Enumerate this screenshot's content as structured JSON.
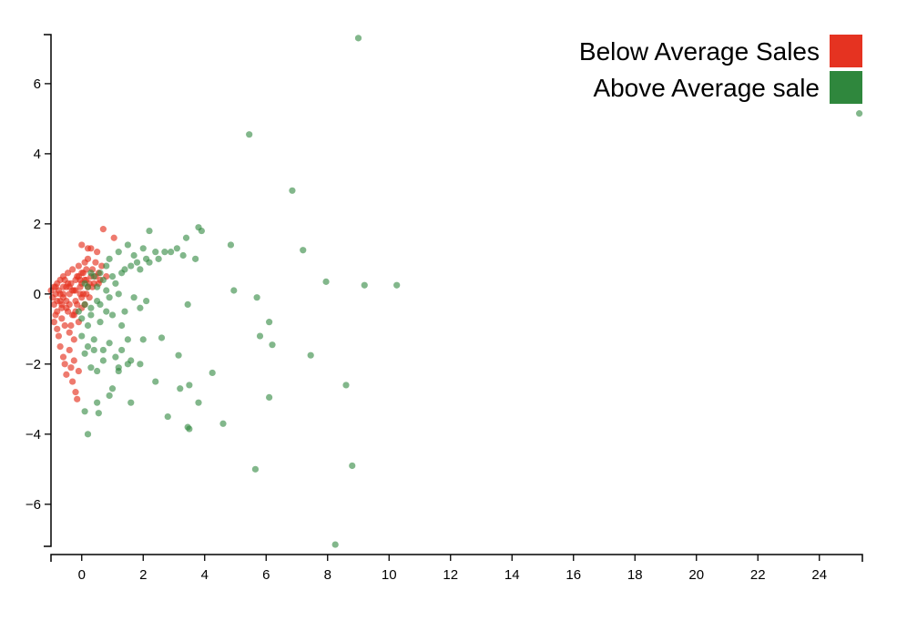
{
  "chart_data": {
    "type": "scatter",
    "title": "",
    "xlabel": "",
    "ylabel": "",
    "xlim": [
      -1,
      25.4
    ],
    "ylim": [
      -7.2,
      7.4
    ],
    "x_ticks": [
      "0",
      "2",
      "4",
      "6",
      "8",
      "10",
      "12",
      "14",
      "16",
      "18",
      "20",
      "22",
      "24"
    ],
    "y_ticks": [
      "6",
      "4",
      "2",
      "0",
      "−2",
      "−4",
      "−6"
    ],
    "x_tick_values": [
      0,
      2,
      4,
      6,
      8,
      10,
      12,
      14,
      16,
      18,
      20,
      22,
      24
    ],
    "y_tick_values": [
      6,
      4,
      2,
      0,
      -2,
      -4,
      -6
    ],
    "legend": {
      "placement": "top-right",
      "entries": [
        {
          "label": "Below Average Sales",
          "color": "#e53321"
        },
        {
          "label": "Above Average sale",
          "color": "#2f873d"
        }
      ]
    },
    "series": [
      {
        "name": "Below Average Sales",
        "color": "#e53321",
        "points": [
          [
            -1.0,
            0.1
          ],
          [
            -0.95,
            -0.1
          ],
          [
            -0.9,
            0.2
          ],
          [
            -0.9,
            -0.3
          ],
          [
            -0.85,
            0.0
          ],
          [
            -0.8,
            0.3
          ],
          [
            -0.8,
            -0.5
          ],
          [
            -0.75,
            0.1
          ],
          [
            -0.7,
            -0.2
          ],
          [
            -0.7,
            0.4
          ],
          [
            -0.65,
            -0.7
          ],
          [
            -0.6,
            0.0
          ],
          [
            -0.6,
            0.5
          ],
          [
            -0.55,
            -0.9
          ],
          [
            -0.5,
            0.2
          ],
          [
            -0.5,
            -0.4
          ],
          [
            -0.45,
            0.6
          ],
          [
            -0.4,
            -1.1
          ],
          [
            -0.4,
            0.0
          ],
          [
            -0.35,
            0.3
          ],
          [
            -0.3,
            -0.6
          ],
          [
            -0.3,
            0.7
          ],
          [
            -0.25,
            -1.3
          ],
          [
            -0.2,
            0.1
          ],
          [
            -0.2,
            -0.2
          ],
          [
            -0.15,
            0.5
          ],
          [
            -0.1,
            -0.8
          ],
          [
            -0.1,
            0.8
          ],
          [
            -0.05,
            0.2
          ],
          [
            0.0,
            -0.4
          ],
          [
            0.0,
            0.6
          ],
          [
            0.05,
            0.0
          ],
          [
            0.1,
            0.9
          ],
          [
            0.1,
            -0.3
          ],
          [
            0.15,
            0.4
          ],
          [
            0.2,
            1.0
          ],
          [
            0.2,
            0.2
          ],
          [
            0.25,
            -0.1
          ],
          [
            0.3,
            1.3
          ],
          [
            0.3,
            0.5
          ],
          [
            0.35,
            0.7
          ],
          [
            0.4,
            0.3
          ],
          [
            0.45,
            0.9
          ],
          [
            0.5,
            1.2
          ],
          [
            0.55,
            0.6
          ],
          [
            0.6,
            0.4
          ],
          [
            0.65,
            0.8
          ],
          [
            0.7,
            1.85
          ],
          [
            0.8,
            0.5
          ],
          [
            1.05,
            1.6
          ],
          [
            -0.8,
            -1.0
          ],
          [
            -0.7,
            -1.5
          ],
          [
            -0.6,
            -1.8
          ],
          [
            -0.55,
            -2.0
          ],
          [
            -0.5,
            -2.3
          ],
          [
            -0.4,
            -1.6
          ],
          [
            -0.35,
            -2.1
          ],
          [
            -0.3,
            -2.5
          ],
          [
            -0.25,
            -1.9
          ],
          [
            -0.2,
            -2.8
          ],
          [
            -0.15,
            -3.0
          ],
          [
            -0.1,
            -2.2
          ],
          [
            -0.9,
            -0.8
          ],
          [
            -0.85,
            -0.6
          ],
          [
            -0.75,
            -1.2
          ],
          [
            -0.65,
            -0.3
          ],
          [
            -0.55,
            0.4
          ],
          [
            -0.45,
            -0.5
          ],
          [
            -0.35,
            -0.9
          ],
          [
            -0.25,
            0.1
          ],
          [
            -0.15,
            -0.3
          ],
          [
            -0.05,
            0.4
          ],
          [
            0.05,
            0.6
          ],
          [
            0.15,
            0.0
          ],
          [
            0.25,
            0.3
          ],
          [
            0.35,
            0.2
          ],
          [
            0.45,
            0.5
          ],
          [
            0.55,
            0.3
          ],
          [
            0.0,
            1.4
          ],
          [
            0.2,
            1.3
          ],
          [
            -0.6,
            -0.1
          ],
          [
            -0.4,
            0.2
          ],
          [
            -0.2,
            -0.5
          ],
          [
            0.0,
            0.3
          ],
          [
            -0.7,
            0.0
          ],
          [
            -0.5,
            -0.2
          ],
          [
            -0.3,
            0.1
          ],
          [
            -0.1,
            0.5
          ],
          [
            0.1,
            0.4
          ],
          [
            -0.85,
            0.2
          ],
          [
            -0.65,
            -0.4
          ],
          [
            -0.45,
            0.3
          ],
          [
            -0.25,
            -0.6
          ],
          [
            -0.05,
            0.0
          ],
          [
            0.15,
            0.7
          ],
          [
            -0.8,
            -0.2
          ],
          [
            -0.6,
            0.2
          ],
          [
            -0.4,
            -0.3
          ],
          [
            -0.2,
            0.4
          ],
          [
            0.0,
            -0.1
          ]
        ]
      },
      {
        "name": "Above Average sale",
        "color": "#2f873d",
        "points": [
          [
            9.0,
            7.3
          ],
          [
            25.3,
            5.15
          ],
          [
            5.45,
            4.55
          ],
          [
            6.85,
            2.95
          ],
          [
            3.8,
            1.9
          ],
          [
            3.9,
            1.8
          ],
          [
            2.2,
            1.8
          ],
          [
            4.85,
            1.4
          ],
          [
            7.2,
            1.25
          ],
          [
            3.1,
            1.3
          ],
          [
            2.7,
            1.2
          ],
          [
            2.1,
            1.0
          ],
          [
            1.5,
            1.4
          ],
          [
            1.2,
            1.2
          ],
          [
            0.9,
            1.0
          ],
          [
            1.8,
            0.9
          ],
          [
            2.4,
            1.2
          ],
          [
            3.4,
            1.6
          ],
          [
            3.7,
            1.0
          ],
          [
            2.0,
            1.3
          ],
          [
            7.95,
            0.35
          ],
          [
            9.2,
            0.25
          ],
          [
            10.25,
            0.25
          ],
          [
            4.95,
            0.1
          ],
          [
            5.7,
            -0.1
          ],
          [
            3.45,
            -0.3
          ],
          [
            6.1,
            -0.8
          ],
          [
            5.8,
            -1.2
          ],
          [
            6.2,
            -1.45
          ],
          [
            7.45,
            -1.75
          ],
          [
            2.6,
            -1.25
          ],
          [
            3.15,
            -1.75
          ],
          [
            4.25,
            -2.25
          ],
          [
            2.4,
            -2.5
          ],
          [
            3.5,
            -2.6
          ],
          [
            3.2,
            -2.7
          ],
          [
            1.0,
            -2.7
          ],
          [
            6.1,
            -2.95
          ],
          [
            8.6,
            -2.6
          ],
          [
            3.8,
            -3.1
          ],
          [
            1.6,
            -3.1
          ],
          [
            0.5,
            -3.1
          ],
          [
            0.55,
            -3.4
          ],
          [
            0.1,
            -3.35
          ],
          [
            2.8,
            -3.5
          ],
          [
            3.45,
            -3.8
          ],
          [
            3.5,
            -3.85
          ],
          [
            4.6,
            -3.7
          ],
          [
            0.2,
            -4.0
          ],
          [
            5.65,
            -5.0
          ],
          [
            8.8,
            -4.9
          ],
          [
            8.25,
            -7.15
          ],
          [
            0.3,
            -2.1
          ],
          [
            0.5,
            -2.2
          ],
          [
            1.2,
            -2.1
          ],
          [
            1.9,
            -2.0
          ],
          [
            1.6,
            -1.9
          ],
          [
            2.0,
            -1.3
          ],
          [
            1.5,
            -1.3
          ],
          [
            1.3,
            -1.6
          ],
          [
            1.1,
            -1.8
          ],
          [
            0.9,
            -1.4
          ],
          [
            0.7,
            -1.6
          ],
          [
            0.4,
            -1.3
          ],
          [
            0.2,
            -1.5
          ],
          [
            0.1,
            -1.7
          ],
          [
            0.0,
            -1.2
          ],
          [
            0.6,
            -0.8
          ],
          [
            1.0,
            -0.6
          ],
          [
            1.4,
            -0.5
          ],
          [
            1.9,
            -0.4
          ],
          [
            2.1,
            -0.2
          ],
          [
            1.7,
            -0.1
          ],
          [
            1.2,
            0.0
          ],
          [
            0.8,
            0.1
          ],
          [
            0.5,
            -0.2
          ],
          [
            0.3,
            -0.6
          ],
          [
            0.1,
            -0.3
          ],
          [
            0.2,
            0.2
          ],
          [
            0.4,
            0.5
          ],
          [
            0.6,
            0.6
          ],
          [
            0.8,
            0.8
          ],
          [
            1.0,
            0.5
          ],
          [
            1.3,
            0.6
          ],
          [
            1.6,
            0.8
          ],
          [
            1.9,
            0.7
          ],
          [
            2.2,
            0.9
          ],
          [
            2.5,
            1.0
          ],
          [
            2.9,
            1.2
          ],
          [
            3.3,
            1.1
          ],
          [
            0.9,
            -2.9
          ],
          [
            1.2,
            -2.2
          ],
          [
            1.5,
            -2.0
          ],
          [
            0.7,
            -1.9
          ],
          [
            0.4,
            -1.6
          ],
          [
            0.2,
            -0.9
          ],
          [
            0.0,
            -0.7
          ],
          [
            -0.1,
            -0.5
          ],
          [
            0.3,
            -0.4
          ],
          [
            0.6,
            -0.3
          ],
          [
            0.9,
            -0.1
          ],
          [
            1.1,
            0.3
          ],
          [
            0.7,
            0.4
          ],
          [
            0.3,
            0.6
          ],
          [
            0.1,
            0.3
          ],
          [
            1.4,
            0.7
          ],
          [
            1.7,
            1.1
          ],
          [
            0.5,
            0.2
          ],
          [
            0.8,
            -0.5
          ],
          [
            1.3,
            -0.9
          ]
        ]
      }
    ]
  }
}
